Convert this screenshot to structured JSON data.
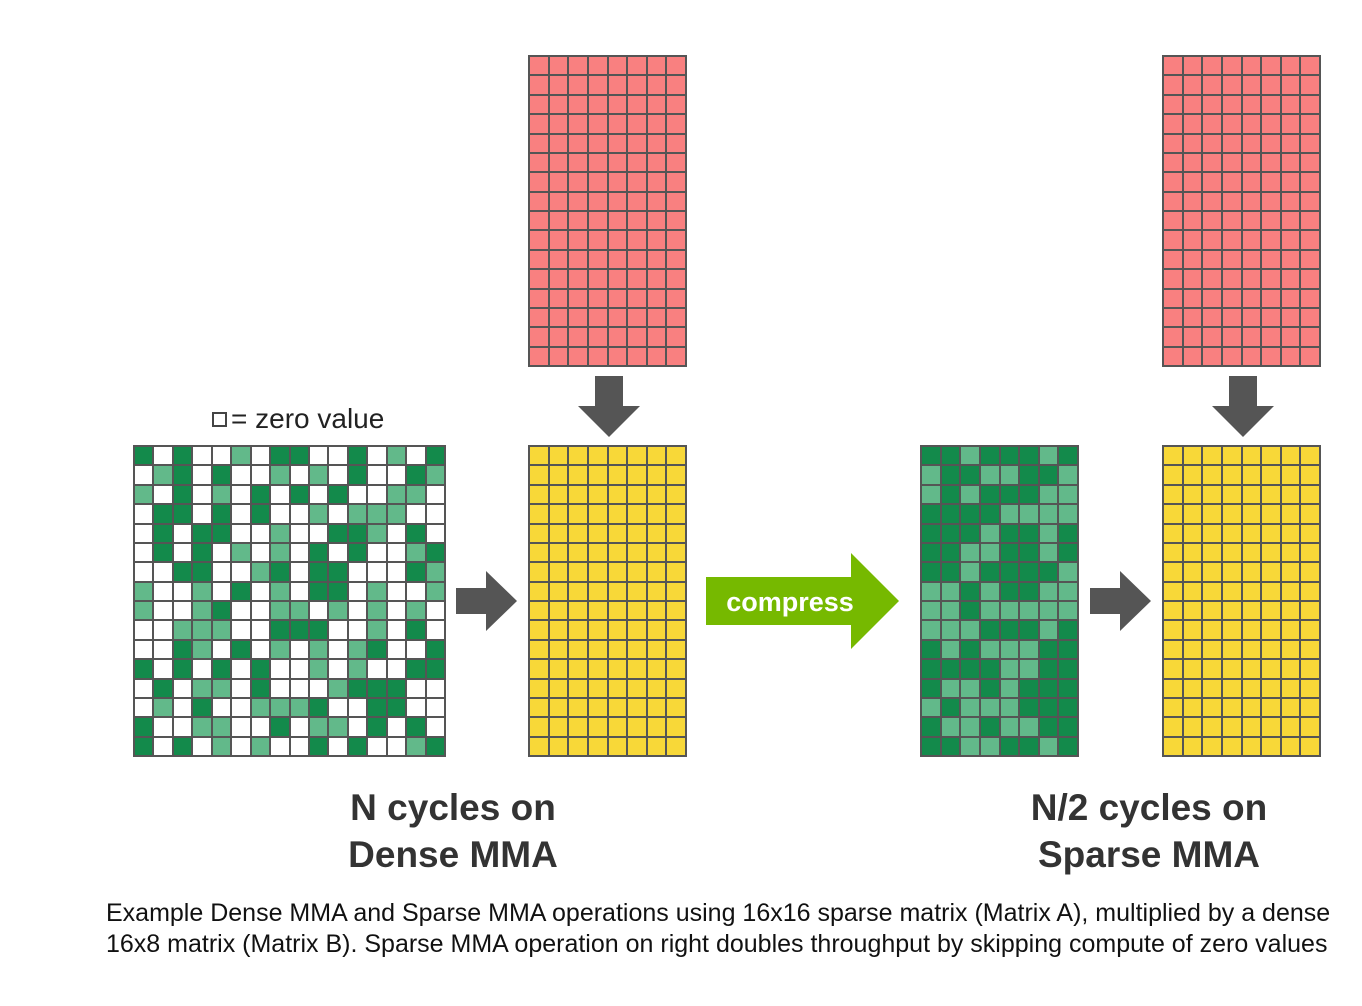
{
  "legend": {
    "text": "= zero value"
  },
  "compress_label": "compress",
  "labels": {
    "dense": [
      "N cycles on",
      "Dense MMA"
    ],
    "sparse": [
      "N/2 cycles on",
      "Sparse MMA"
    ]
  },
  "caption": "Example Dense MMA and Sparse MMA operations using 16x16 sparse matrix (Matrix A), multiplied by a dense 16x8 matrix (Matrix B). Sparse MMA operation on right doubles throughput by skipping compute of zero values",
  "colors": {
    "grid_line": "#555555",
    "matrix_b": "#f98080",
    "output": "#f8d838",
    "dark_green": "#138a4b",
    "light_green": "#62b98a",
    "zero": "#ffffff",
    "arrow_gray": "#555555",
    "compress_green": "#76b900"
  }
}
